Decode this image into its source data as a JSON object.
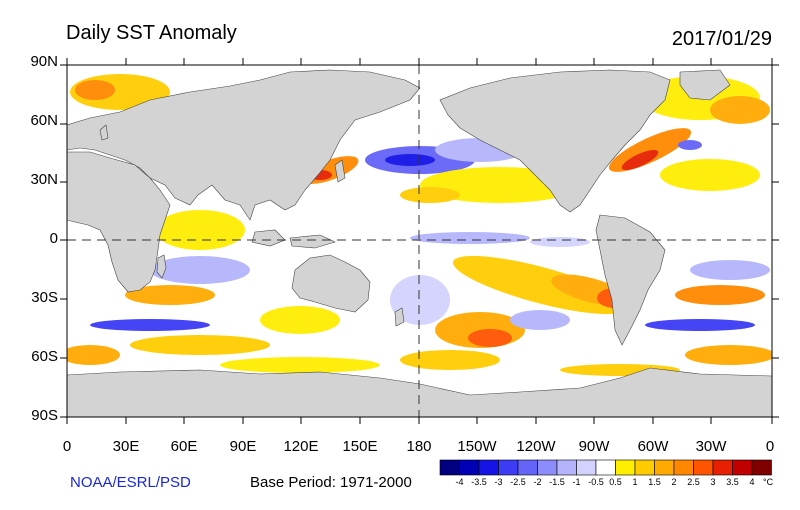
{
  "header": {
    "title": "Daily SST Anomaly",
    "date": "2017/01/29"
  },
  "axes": {
    "lat_labels": [
      "90N",
      "60N",
      "30N",
      "0",
      "30S",
      "60S",
      "90S"
    ],
    "lon_labels": [
      "0",
      "30E",
      "60E",
      "90E",
      "120E",
      "150E",
      "180",
      "150W",
      "120W",
      "90W",
      "60W",
      "30W",
      "0"
    ]
  },
  "footer": {
    "credit": "NOAA/ESRL/PSD",
    "base_period": "Base Period: 1971-2000"
  },
  "colorbar": {
    "unit": "°C",
    "tick_labels": [
      "-4",
      "-3.5",
      "-3",
      "-2.5",
      "-2",
      "-1.5",
      "-1",
      "-0.5",
      "0.5",
      "1",
      "1.5",
      "2",
      "2.5",
      "3",
      "3.5",
      "4"
    ],
    "colors": [
      "#000080",
      "#0000b4",
      "#1414e6",
      "#3c3cf5",
      "#6464f8",
      "#8c8cfa",
      "#b4b4fc",
      "#d2d2fd",
      "#ffffff",
      "#ffee00",
      "#ffcc00",
      "#ffaa00",
      "#ff8800",
      "#ff5500",
      "#e62000",
      "#c00000",
      "#800000"
    ]
  },
  "map": {
    "land_color": "#d3d3d3",
    "ocean_color": "#ffffff"
  }
}
